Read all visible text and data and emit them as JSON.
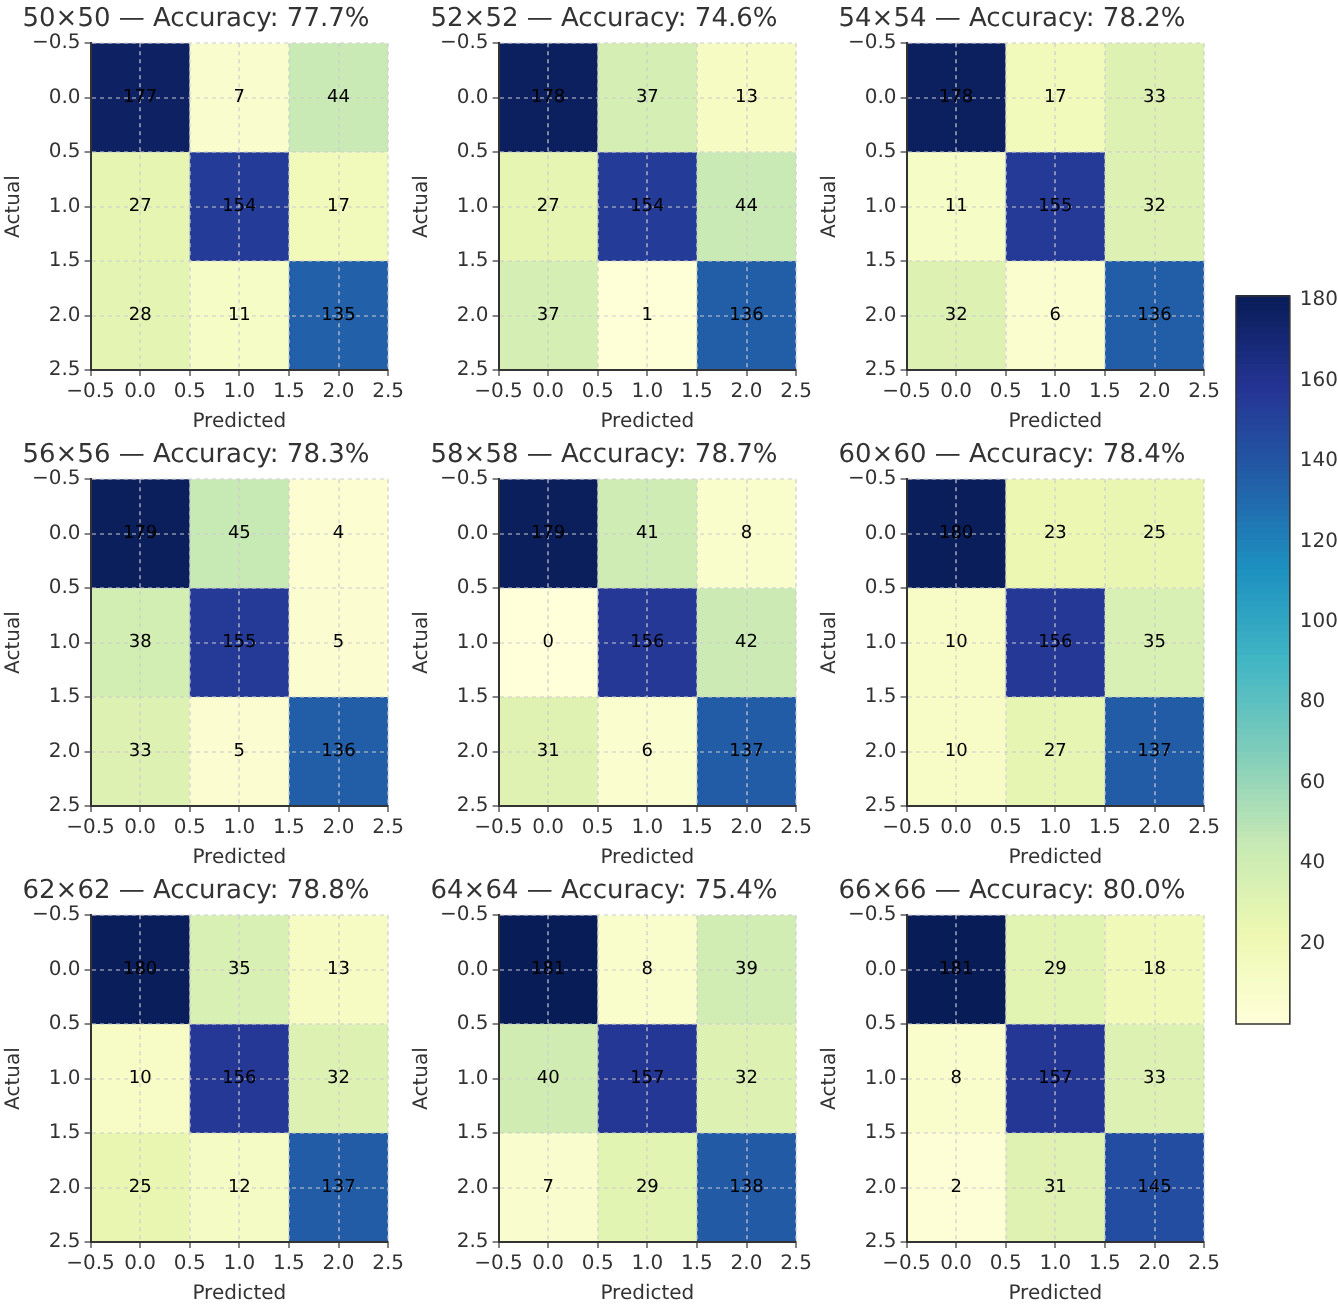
{
  "chart_data": [
    {
      "type": "heatmap",
      "title": "50×50 — Accuracy: 77.7%",
      "xlabel": "Predicted",
      "ylabel": "Actual",
      "x": [
        0,
        1,
        2
      ],
      "cells": [
        [
          177,
          7,
          44
        ],
        [
          27,
          154,
          17
        ],
        [
          28,
          11,
          135
        ]
      ],
      "xlim": [
        -0.5,
        2.5
      ],
      "ylim": [
        2.5,
        -0.5
      ],
      "xticks": [
        {
          "value": -0.5,
          "label": "−0.5"
        },
        {
          "value": 0,
          "label": "0.0"
        },
        {
          "value": 0.5,
          "label": "0.5"
        },
        {
          "value": 1,
          "label": "1.0"
        },
        {
          "value": 1.5,
          "label": "1.5"
        },
        {
          "value": 2,
          "label": "2.0"
        },
        {
          "value": 2.5,
          "label": "2.5"
        }
      ],
      "yticks": [
        {
          "value": -0.5,
          "label": "−0.5"
        },
        {
          "value": 0,
          "label": "0.0"
        },
        {
          "value": 0.5,
          "label": "0.5"
        },
        {
          "value": 1,
          "label": "1.0"
        },
        {
          "value": 1.5,
          "label": "1.5"
        },
        {
          "value": 2,
          "label": "2.0"
        },
        {
          "value": 2.5,
          "label": "2.5"
        }
      ],
      "grid": true,
      "data_labels": true
    },
    {
      "type": "heatmap",
      "title": "52×52 — Accuracy: 74.6%",
      "xlabel": "Predicted",
      "ylabel": "Actual",
      "x": [
        0,
        1,
        2
      ],
      "cells": [
        [
          178,
          37,
          13
        ],
        [
          27,
          154,
          44
        ],
        [
          37,
          1,
          136
        ]
      ],
      "xlim": [
        -0.5,
        2.5
      ],
      "ylim": [
        2.5,
        -0.5
      ],
      "xticks": [
        {
          "value": -0.5,
          "label": "−0.5"
        },
        {
          "value": 0,
          "label": "0.0"
        },
        {
          "value": 0.5,
          "label": "0.5"
        },
        {
          "value": 1,
          "label": "1.0"
        },
        {
          "value": 1.5,
          "label": "1.5"
        },
        {
          "value": 2,
          "label": "2.0"
        },
        {
          "value": 2.5,
          "label": "2.5"
        }
      ],
      "yticks": [
        {
          "value": -0.5,
          "label": "−0.5"
        },
        {
          "value": 0,
          "label": "0.0"
        },
        {
          "value": 0.5,
          "label": "0.5"
        },
        {
          "value": 1,
          "label": "1.0"
        },
        {
          "value": 1.5,
          "label": "1.5"
        },
        {
          "value": 2,
          "label": "2.0"
        },
        {
          "value": 2.5,
          "label": "2.5"
        }
      ],
      "grid": true,
      "data_labels": true
    },
    {
      "type": "heatmap",
      "title": "54×54 — Accuracy: 78.2%",
      "xlabel": "Predicted",
      "ylabel": "Actual",
      "x": [
        0,
        1,
        2
      ],
      "cells": [
        [
          178,
          17,
          33
        ],
        [
          11,
          155,
          32
        ],
        [
          32,
          6,
          136
        ]
      ],
      "xlim": [
        -0.5,
        2.5
      ],
      "ylim": [
        2.5,
        -0.5
      ],
      "xticks": [
        {
          "value": -0.5,
          "label": "−0.5"
        },
        {
          "value": 0,
          "label": "0.0"
        },
        {
          "value": 0.5,
          "label": "0.5"
        },
        {
          "value": 1,
          "label": "1.0"
        },
        {
          "value": 1.5,
          "label": "1.5"
        },
        {
          "value": 2,
          "label": "2.0"
        },
        {
          "value": 2.5,
          "label": "2.5"
        }
      ],
      "yticks": [
        {
          "value": -0.5,
          "label": "−0.5"
        },
        {
          "value": 0,
          "label": "0.0"
        },
        {
          "value": 0.5,
          "label": "0.5"
        },
        {
          "value": 1,
          "label": "1.0"
        },
        {
          "value": 1.5,
          "label": "1.5"
        },
        {
          "value": 2,
          "label": "2.0"
        },
        {
          "value": 2.5,
          "label": "2.5"
        }
      ],
      "grid": true,
      "data_labels": true
    },
    {
      "type": "heatmap",
      "title": "56×56 — Accuracy: 78.3%",
      "xlabel": "Predicted",
      "ylabel": "Actual",
      "x": [
        0,
        1,
        2
      ],
      "cells": [
        [
          179,
          45,
          4
        ],
        [
          38,
          155,
          5
        ],
        [
          33,
          5,
          136
        ]
      ],
      "xlim": [
        -0.5,
        2.5
      ],
      "ylim": [
        2.5,
        -0.5
      ],
      "xticks": [
        {
          "value": -0.5,
          "label": "−0.5"
        },
        {
          "value": 0,
          "label": "0.0"
        },
        {
          "value": 0.5,
          "label": "0.5"
        },
        {
          "value": 1,
          "label": "1.0"
        },
        {
          "value": 1.5,
          "label": "1.5"
        },
        {
          "value": 2,
          "label": "2.0"
        },
        {
          "value": 2.5,
          "label": "2.5"
        }
      ],
      "yticks": [
        {
          "value": -0.5,
          "label": "−0.5"
        },
        {
          "value": 0,
          "label": "0.0"
        },
        {
          "value": 0.5,
          "label": "0.5"
        },
        {
          "value": 1,
          "label": "1.0"
        },
        {
          "value": 1.5,
          "label": "1.5"
        },
        {
          "value": 2,
          "label": "2.0"
        },
        {
          "value": 2.5,
          "label": "2.5"
        }
      ],
      "grid": true,
      "data_labels": true
    },
    {
      "type": "heatmap",
      "title": "58×58 — Accuracy: 78.7%",
      "xlabel": "Predicted",
      "ylabel": "Actual",
      "x": [
        0,
        1,
        2
      ],
      "cells": [
        [
          179,
          41,
          8
        ],
        [
          0,
          156,
          42
        ],
        [
          31,
          6,
          137
        ]
      ],
      "xlim": [
        -0.5,
        2.5
      ],
      "ylim": [
        2.5,
        -0.5
      ],
      "xticks": [
        {
          "value": -0.5,
          "label": "−0.5"
        },
        {
          "value": 0,
          "label": "0.0"
        },
        {
          "value": 0.5,
          "label": "0.5"
        },
        {
          "value": 1,
          "label": "1.0"
        },
        {
          "value": 1.5,
          "label": "1.5"
        },
        {
          "value": 2,
          "label": "2.0"
        },
        {
          "value": 2.5,
          "label": "2.5"
        }
      ],
      "yticks": [
        {
          "value": -0.5,
          "label": "−0.5"
        },
        {
          "value": 0,
          "label": "0.0"
        },
        {
          "value": 0.5,
          "label": "0.5"
        },
        {
          "value": 1,
          "label": "1.0"
        },
        {
          "value": 1.5,
          "label": "1.5"
        },
        {
          "value": 2,
          "label": "2.0"
        },
        {
          "value": 2.5,
          "label": "2.5"
        }
      ],
      "grid": true,
      "data_labels": true
    },
    {
      "type": "heatmap",
      "title": "60×60 — Accuracy: 78.4%",
      "xlabel": "Predicted",
      "ylabel": "Actual",
      "x": [
        0,
        1,
        2
      ],
      "cells": [
        [
          180,
          23,
          25
        ],
        [
          10,
          156,
          35
        ],
        [
          10,
          27,
          137
        ]
      ],
      "xlim": [
        -0.5,
        2.5
      ],
      "ylim": [
        2.5,
        -0.5
      ],
      "xticks": [
        {
          "value": -0.5,
          "label": "−0.5"
        },
        {
          "value": 0,
          "label": "0.0"
        },
        {
          "value": 0.5,
          "label": "0.5"
        },
        {
          "value": 1,
          "label": "1.0"
        },
        {
          "value": 1.5,
          "label": "1.5"
        },
        {
          "value": 2,
          "label": "2.0"
        },
        {
          "value": 2.5,
          "label": "2.5"
        }
      ],
      "yticks": [
        {
          "value": -0.5,
          "label": "−0.5"
        },
        {
          "value": 0,
          "label": "0.0"
        },
        {
          "value": 0.5,
          "label": "0.5"
        },
        {
          "value": 1,
          "label": "1.0"
        },
        {
          "value": 1.5,
          "label": "1.5"
        },
        {
          "value": 2,
          "label": "2.0"
        },
        {
          "value": 2.5,
          "label": "2.5"
        }
      ],
      "grid": true,
      "data_labels": true
    },
    {
      "type": "heatmap",
      "title": "62×62 — Accuracy: 78.8%",
      "xlabel": "Predicted",
      "ylabel": "Actual",
      "x": [
        0,
        1,
        2
      ],
      "cells": [
        [
          180,
          35,
          13
        ],
        [
          10,
          156,
          32
        ],
        [
          25,
          12,
          137
        ]
      ],
      "xlim": [
        -0.5,
        2.5
      ],
      "ylim": [
        2.5,
        -0.5
      ],
      "xticks": [
        {
          "value": -0.5,
          "label": "−0.5"
        },
        {
          "value": 0,
          "label": "0.0"
        },
        {
          "value": 0.5,
          "label": "0.5"
        },
        {
          "value": 1,
          "label": "1.0"
        },
        {
          "value": 1.5,
          "label": "1.5"
        },
        {
          "value": 2,
          "label": "2.0"
        },
        {
          "value": 2.5,
          "label": "2.5"
        }
      ],
      "yticks": [
        {
          "value": -0.5,
          "label": "−0.5"
        },
        {
          "value": 0,
          "label": "0.0"
        },
        {
          "value": 0.5,
          "label": "0.5"
        },
        {
          "value": 1,
          "label": "1.0"
        },
        {
          "value": 1.5,
          "label": "1.5"
        },
        {
          "value": 2,
          "label": "2.0"
        },
        {
          "value": 2.5,
          "label": "2.5"
        }
      ],
      "grid": true,
      "data_labels": true
    },
    {
      "type": "heatmap",
      "title": "64×64 — Accuracy: 75.4%",
      "xlabel": "Predicted",
      "ylabel": "Actual",
      "x": [
        0,
        1,
        2
      ],
      "cells": [
        [
          181,
          8,
          39
        ],
        [
          40,
          157,
          32
        ],
        [
          7,
          29,
          138
        ]
      ],
      "xlim": [
        -0.5,
        2.5
      ],
      "ylim": [
        2.5,
        -0.5
      ],
      "xticks": [
        {
          "value": -0.5,
          "label": "−0.5"
        },
        {
          "value": 0,
          "label": "0.0"
        },
        {
          "value": 0.5,
          "label": "0.5"
        },
        {
          "value": 1,
          "label": "1.0"
        },
        {
          "value": 1.5,
          "label": "1.5"
        },
        {
          "value": 2,
          "label": "2.0"
        },
        {
          "value": 2.5,
          "label": "2.5"
        }
      ],
      "yticks": [
        {
          "value": -0.5,
          "label": "−0.5"
        },
        {
          "value": 0,
          "label": "0.0"
        },
        {
          "value": 0.5,
          "label": "0.5"
        },
        {
          "value": 1,
          "label": "1.0"
        },
        {
          "value": 1.5,
          "label": "1.5"
        },
        {
          "value": 2,
          "label": "2.0"
        },
        {
          "value": 2.5,
          "label": "2.5"
        }
      ],
      "grid": true,
      "data_labels": true
    },
    {
      "type": "heatmap",
      "title": "66×66 — Accuracy: 80.0%",
      "xlabel": "Predicted",
      "ylabel": "Actual",
      "x": [
        0,
        1,
        2
      ],
      "cells": [
        [
          181,
          29,
          18
        ],
        [
          8,
          157,
          33
        ],
        [
          2,
          31,
          145
        ]
      ],
      "clim": [
        0,
        181
      ],
      "cticks": [
        20,
        40,
        60,
        80,
        100,
        120,
        140,
        160,
        180
      ],
      "xlim": [
        -0.5,
        2.5
      ],
      "ylim": [
        2.5,
        -0.5
      ],
      "xticks": [
        {
          "value": -0.5,
          "label": "−0.5"
        },
        {
          "value": 0,
          "label": "0.0"
        },
        {
          "value": 0.5,
          "label": "0.5"
        },
        {
          "value": 1,
          "label": "1.0"
        },
        {
          "value": 1.5,
          "label": "1.5"
        },
        {
          "value": 2,
          "label": "2.0"
        },
        {
          "value": 2.5,
          "label": "2.5"
        }
      ],
      "yticks": [
        {
          "value": -0.5,
          "label": "−0.5"
        },
        {
          "value": 0,
          "label": "0.0"
        },
        {
          "value": 0.5,
          "label": "0.5"
        },
        {
          "value": 1,
          "label": "1.0"
        },
        {
          "value": 1.5,
          "label": "1.5"
        },
        {
          "value": 2,
          "label": "2.0"
        },
        {
          "value": 2.5,
          "label": "2.5"
        }
      ],
      "grid": true,
      "data_labels": true
    }
  ]
}
